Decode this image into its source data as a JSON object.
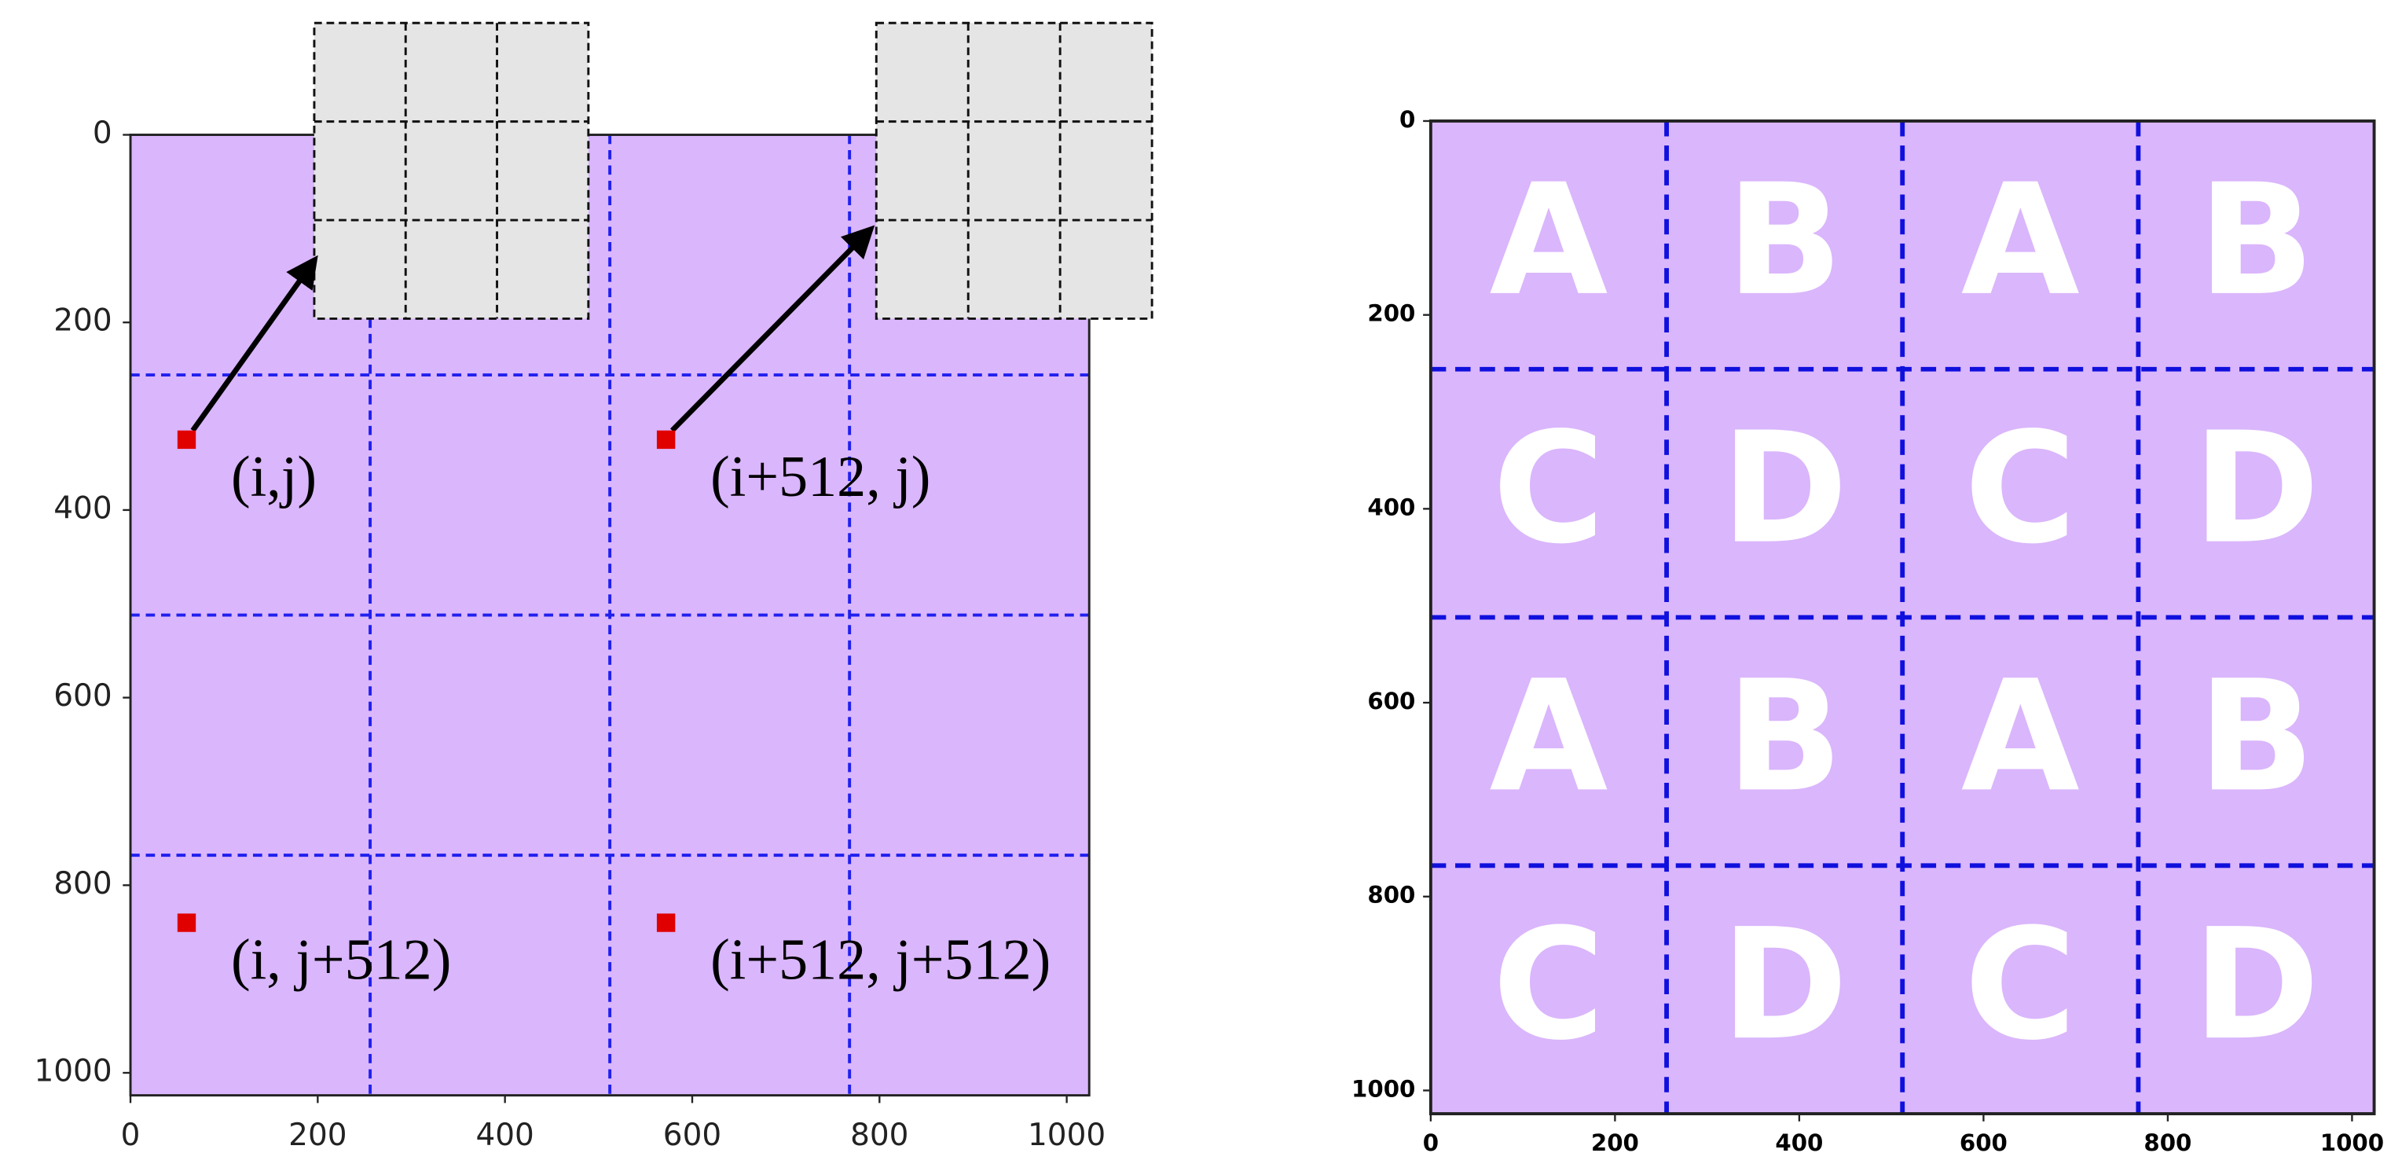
{
  "chart_data": [
    {
      "type": "scatter",
      "xlim": [
        0,
        1024
      ],
      "ylim": [
        1024,
        0
      ],
      "xticks": [
        0,
        200,
        400,
        600,
        800,
        1000
      ],
      "yticks": [
        0,
        200,
        400,
        600,
        800,
        1000
      ],
      "dividers": [
        256,
        512,
        768
      ],
      "background": "#dab6fc",
      "divider_color": "#2020ee",
      "points": {
        "x": [
          60,
          572,
          60,
          572
        ],
        "y": [
          325,
          325,
          840,
          840
        ],
        "color": "#e00000",
        "labels": [
          "(i,j)",
          "(i+512, j)",
          "(i, j+512)",
          "(i+512, j+512)"
        ]
      }
    },
    {
      "type": "tiles",
      "xlim": [
        0,
        1024
      ],
      "ylim": [
        1024,
        0
      ],
      "xticks": [
        0,
        200,
        400,
        600,
        800,
        1000
      ],
      "yticks": [
        0,
        200,
        400,
        600,
        800,
        1000
      ],
      "dividers": [
        256,
        512,
        768
      ],
      "background": "#dab6fc",
      "divider_color": "#1010dd",
      "cells": [
        [
          "A",
          "B",
          "A",
          "B"
        ],
        [
          "C",
          "D",
          "C",
          "D"
        ],
        [
          "A",
          "B",
          "A",
          "B"
        ],
        [
          "C",
          "D",
          "C",
          "D"
        ]
      ]
    }
  ]
}
